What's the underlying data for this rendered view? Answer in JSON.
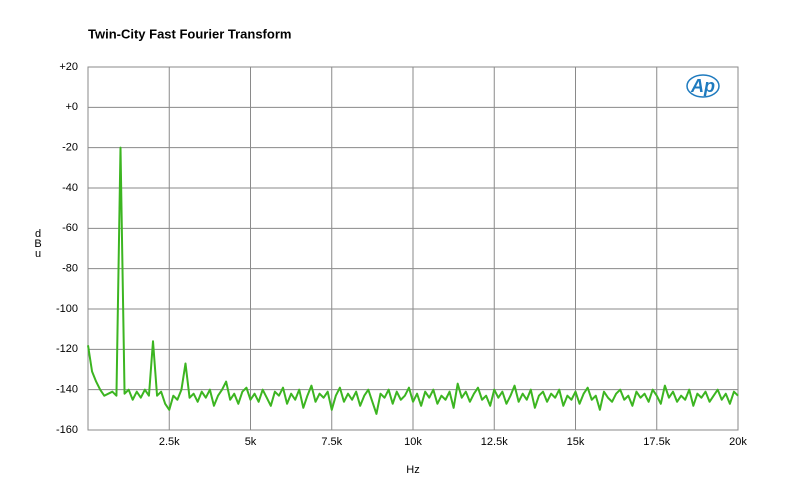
{
  "chart_data": {
    "type": "line",
    "title": "Twin-City Fast Fourier Transform",
    "xlabel": "Hz",
    "ylabel": "dBu",
    "logo": "Ap",
    "grid": true,
    "xlim": [
      0,
      20000
    ],
    "xticks": [
      {
        "value": 2500,
        "label": "2.5k"
      },
      {
        "value": 5000,
        "label": "5k"
      },
      {
        "value": 7500,
        "label": "7.5k"
      },
      {
        "value": 10000,
        "label": "10k"
      },
      {
        "value": 12500,
        "label": "12.5k"
      },
      {
        "value": 15000,
        "label": "15k"
      },
      {
        "value": 17500,
        "label": "17.5k"
      },
      {
        "value": 20000,
        "label": "20k"
      }
    ],
    "ylim": [
      -160,
      20
    ],
    "yticks": [
      {
        "value": 20,
        "label": "+20"
      },
      {
        "value": 0,
        "label": "+0"
      },
      -20,
      -40,
      -60,
      -80,
      -100,
      -120,
      -140,
      -160
    ],
    "series": [
      {
        "color": "#3cb521",
        "x": [
          0,
          125,
          250,
          375,
          500,
          625,
          750,
          875,
          1000,
          1125,
          1250,
          1375,
          1500,
          1625,
          1750,
          1875,
          2000,
          2125,
          2250,
          2375,
          2500,
          2625,
          2750,
          2875,
          3000,
          3125,
          3250,
          3375,
          3500,
          3625,
          3750,
          3875,
          4000,
          4125,
          4250,
          4375,
          4500,
          4625,
          4750,
          4875,
          5000,
          5125,
          5250,
          5375,
          5500,
          5625,
          5750,
          5875,
          6000,
          6125,
          6250,
          6375,
          6500,
          6625,
          6750,
          6875,
          7000,
          7125,
          7250,
          7375,
          7500,
          7625,
          7750,
          7875,
          8000,
          8125,
          8250,
          8375,
          8500,
          8625,
          8750,
          8875,
          9000,
          9125,
          9250,
          9375,
          9500,
          9625,
          9750,
          9875,
          10000,
          10125,
          10250,
          10375,
          10500,
          10625,
          10750,
          10875,
          11000,
          11125,
          11250,
          11375,
          11500,
          11625,
          11750,
          11875,
          12000,
          12125,
          12250,
          12375,
          12500,
          12625,
          12750,
          12875,
          13000,
          13125,
          13250,
          13375,
          13500,
          13625,
          13750,
          13875,
          14000,
          14125,
          14250,
          14375,
          14500,
          14625,
          14750,
          14875,
          15000,
          15125,
          15250,
          15375,
          15500,
          15625,
          15750,
          15875,
          16000,
          16125,
          16250,
          16375,
          16500,
          16625,
          16750,
          16875,
          17000,
          17125,
          17250,
          17375,
          17500,
          17625,
          17750,
          17875,
          18000,
          18125,
          18250,
          18375,
          18500,
          18625,
          18750,
          18875,
          19000,
          19125,
          19250,
          19375,
          19500,
          19625,
          19750,
          19875,
          20000
        ],
        "values": [
          -118,
          -131,
          -136,
          -140,
          -143,
          -142,
          -141,
          -143,
          -20,
          -142,
          -140,
          -145,
          -141,
          -144,
          -140,
          -143,
          -116,
          -143,
          -141,
          -147,
          -150,
          -143,
          -145,
          -140,
          -127,
          -144,
          -142,
          -146,
          -141,
          -144,
          -140,
          -148,
          -143,
          -140,
          -136,
          -145,
          -142,
          -147,
          -141,
          -139,
          -145,
          -142,
          -146,
          -140,
          -144,
          -148,
          -141,
          -143,
          -139,
          -147,
          -142,
          -145,
          -140,
          -149,
          -143,
          -138,
          -146,
          -142,
          -144,
          -141,
          -150,
          -143,
          -139,
          -146,
          -142,
          -145,
          -141,
          -148,
          -143,
          -140,
          -146,
          -152,
          -142,
          -144,
          -140,
          -147,
          -141,
          -145,
          -143,
          -139,
          -146,
          -142,
          -148,
          -141,
          -144,
          -140,
          -147,
          -143,
          -145,
          -141,
          -149,
          -137,
          -144,
          -141,
          -146,
          -142,
          -139,
          -145,
          -143,
          -148,
          -140,
          -144,
          -141,
          -147,
          -143,
          -138,
          -146,
          -142,
          -145,
          -140,
          -149,
          -143,
          -141,
          -146,
          -142,
          -144,
          -140,
          -148,
          -143,
          -145,
          -141,
          -147,
          -142,
          -139,
          -145,
          -143,
          -150,
          -141,
          -144,
          -146,
          -142,
          -140,
          -145,
          -143,
          -148,
          -141,
          -144,
          -142,
          -146,
          -140,
          -143,
          -147,
          -138,
          -144,
          -141,
          -146,
          -143,
          -145,
          -140,
          -148,
          -142,
          -144,
          -141,
          -146,
          -143,
          -140,
          -145,
          -142,
          -147,
          -141,
          -143
        ]
      }
    ]
  }
}
